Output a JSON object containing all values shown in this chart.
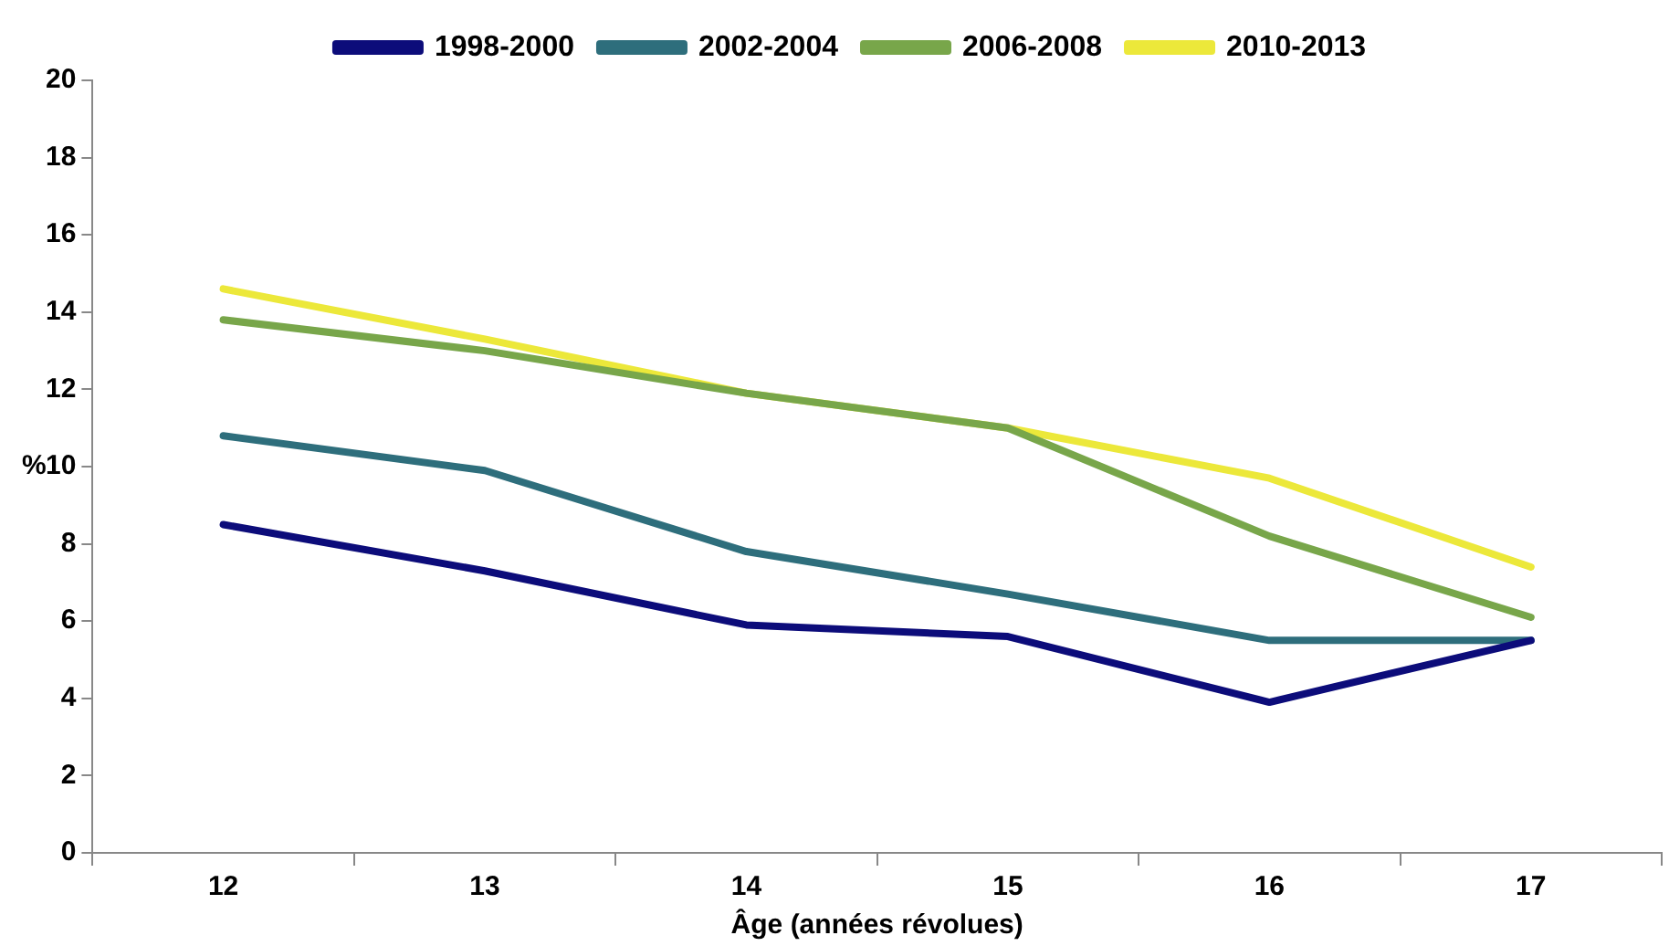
{
  "chart_data": {
    "type": "line",
    "xlabel": "Âge (années révolues)",
    "ylabel": "%",
    "categories": [
      "12",
      "13",
      "14",
      "15",
      "16",
      "17"
    ],
    "series": [
      {
        "name": "1998-2000",
        "color": "#0c0c7a",
        "values": [
          8.5,
          7.3,
          5.9,
          5.6,
          3.9,
          5.5
        ]
      },
      {
        "name": "2002-2004",
        "color": "#2e6e7c",
        "values": [
          10.8,
          9.9,
          7.8,
          6.7,
          5.5,
          5.5
        ]
      },
      {
        "name": "2006-2008",
        "color": "#78a64a",
        "values": [
          13.8,
          13.0,
          11.9,
          11.0,
          8.2,
          6.1
        ]
      },
      {
        "name": "2010-2013",
        "color": "#ece83a",
        "values": [
          14.6,
          13.3,
          11.9,
          11.0,
          9.7,
          7.4
        ]
      }
    ],
    "ylim": [
      0,
      20
    ],
    "yticks": [
      0,
      2,
      4,
      6,
      8,
      10,
      12,
      14,
      16,
      18,
      20
    ],
    "grid": false,
    "legend": "top",
    "marker": "none",
    "line_style": "solid"
  }
}
